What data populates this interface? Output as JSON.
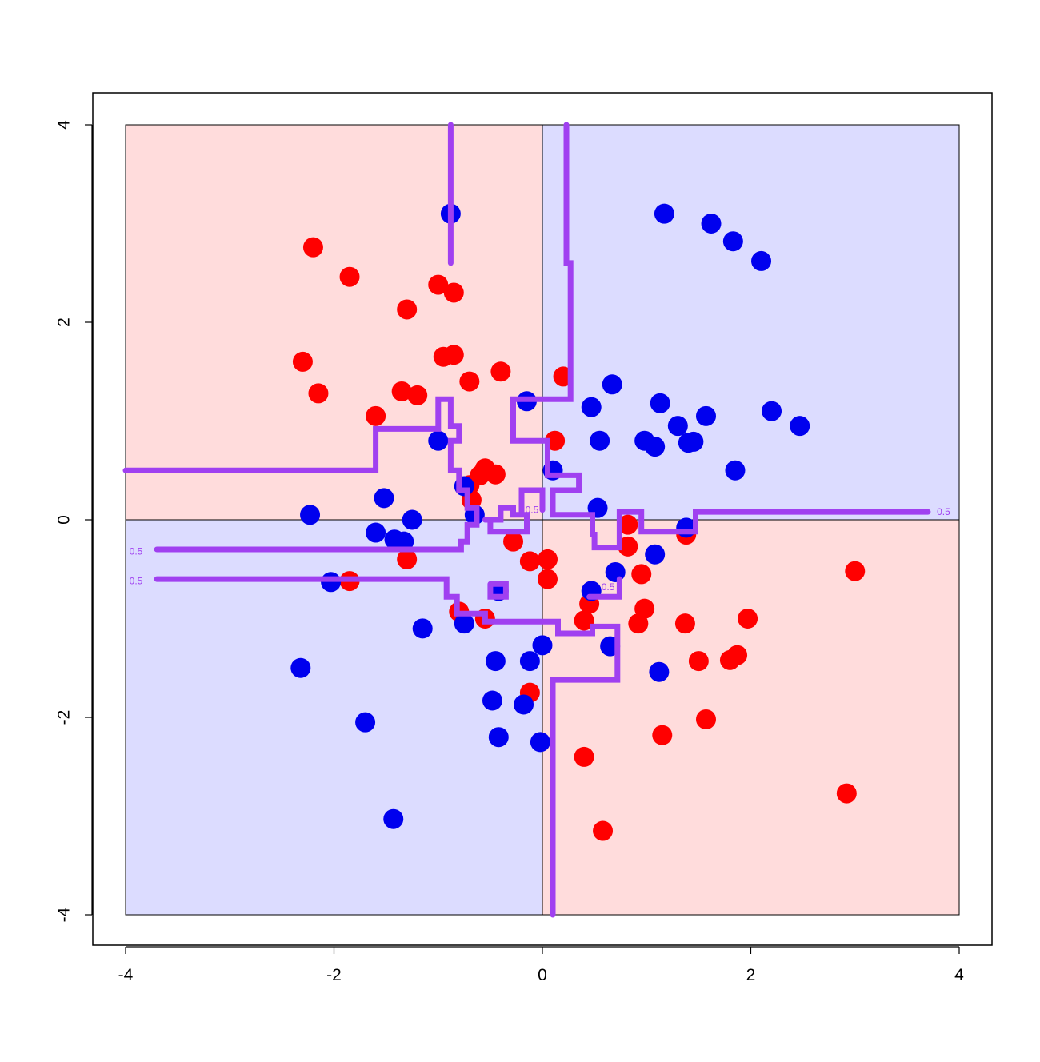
{
  "chart_data": {
    "type": "scatter",
    "xlim": [
      -4,
      4
    ],
    "ylim": [
      -4,
      4
    ],
    "x_ticks": [
      "-4",
      "-2",
      "0",
      "2",
      "4"
    ],
    "y_ticks": [
      "-4",
      "-2",
      "0",
      "2",
      "4"
    ],
    "grid": false,
    "legend": "none",
    "colors": {
      "class_red": "#ff0000",
      "class_blue": "#0000ee",
      "region_red": "#ffdcdc",
      "region_blue": "#dcdcff",
      "boundary": "#a040f0"
    },
    "regions": [
      {
        "quadrant": "top-left",
        "class": "red"
      },
      {
        "quadrant": "top-right",
        "class": "blue"
      },
      {
        "quadrant": "bottom-left",
        "class": "blue"
      },
      {
        "quadrant": "bottom-right",
        "class": "red"
      }
    ],
    "series": [
      {
        "class": "red",
        "points": [
          [
            -2.2,
            2.76
          ],
          [
            -1.85,
            2.46
          ],
          [
            -1.3,
            2.13
          ],
          [
            -1.0,
            2.38
          ],
          [
            -0.85,
            2.3
          ],
          [
            -2.3,
            1.6
          ],
          [
            -2.15,
            1.28
          ],
          [
            -1.35,
            1.3
          ],
          [
            -1.2,
            1.26
          ],
          [
            -0.95,
            1.65
          ],
          [
            -0.85,
            1.67
          ],
          [
            -0.7,
            1.4
          ],
          [
            -0.4,
            1.5
          ],
          [
            -1.6,
            1.05
          ],
          [
            0.2,
            1.45
          ],
          [
            0.12,
            0.8
          ],
          [
            -0.55,
            0.52
          ],
          [
            -0.6,
            0.45
          ],
          [
            -0.45,
            0.46
          ],
          [
            -0.7,
            0.35
          ],
          [
            -0.68,
            0.2
          ],
          [
            -0.28,
            -0.22
          ],
          [
            -0.12,
            -0.42
          ],
          [
            0.05,
            -0.4
          ],
          [
            0.05,
            -0.6
          ],
          [
            -1.3,
            -0.4
          ],
          [
            -1.85,
            -0.62
          ],
          [
            -0.8,
            -0.93
          ],
          [
            -0.55,
            -1.0
          ],
          [
            0.45,
            -0.85
          ],
          [
            0.4,
            -1.02
          ],
          [
            0.82,
            -0.05
          ],
          [
            0.82,
            -0.27
          ],
          [
            0.95,
            -0.55
          ],
          [
            0.98,
            -0.9
          ],
          [
            0.92,
            -1.05
          ],
          [
            1.38,
            -0.15
          ],
          [
            1.37,
            -1.05
          ],
          [
            1.5,
            -1.43
          ],
          [
            1.8,
            -1.42
          ],
          [
            1.87,
            -1.37
          ],
          [
            1.97,
            -1.0
          ],
          [
            3.0,
            -0.52
          ],
          [
            -0.12,
            -1.75
          ],
          [
            1.15,
            -2.18
          ],
          [
            1.57,
            -2.02
          ],
          [
            0.4,
            -2.4
          ],
          [
            0.58,
            -3.15
          ],
          [
            2.92,
            -2.77
          ]
        ]
      },
      {
        "class": "blue",
        "points": [
          [
            -0.88,
            3.1
          ],
          [
            1.17,
            3.1
          ],
          [
            1.62,
            3.0
          ],
          [
            1.83,
            2.82
          ],
          [
            2.1,
            2.62
          ],
          [
            0.67,
            1.37
          ],
          [
            0.47,
            1.14
          ],
          [
            1.13,
            1.18
          ],
          [
            1.3,
            0.95
          ],
          [
            1.57,
            1.05
          ],
          [
            2.2,
            1.1
          ],
          [
            2.47,
            0.95
          ],
          [
            -0.15,
            1.2
          ],
          [
            0.55,
            0.8
          ],
          [
            0.98,
            0.8
          ],
          [
            1.08,
            0.74
          ],
          [
            1.4,
            0.78
          ],
          [
            1.45,
            0.79
          ],
          [
            1.85,
            0.5
          ],
          [
            -1.0,
            0.8
          ],
          [
            0.1,
            0.5
          ],
          [
            0.53,
            0.12
          ],
          [
            -0.75,
            0.34
          ],
          [
            -1.52,
            0.22
          ],
          [
            -2.23,
            0.05
          ],
          [
            -1.25,
            0.0
          ],
          [
            -0.65,
            0.05
          ],
          [
            -1.6,
            -0.13
          ],
          [
            -1.42,
            -0.2
          ],
          [
            -1.33,
            -0.22
          ],
          [
            1.38,
            -0.08
          ],
          [
            1.08,
            -0.35
          ],
          [
            0.7,
            -0.53
          ],
          [
            0.47,
            -0.72
          ],
          [
            -0.42,
            -0.72
          ],
          [
            -2.03,
            -0.63
          ],
          [
            -0.75,
            -1.05
          ],
          [
            -1.15,
            -1.1
          ],
          [
            0.65,
            -1.28
          ],
          [
            -0.45,
            -1.43
          ],
          [
            -0.12,
            -1.43
          ],
          [
            0.0,
            -1.27
          ],
          [
            1.12,
            -1.54
          ],
          [
            -2.32,
            -1.5
          ],
          [
            -0.48,
            -1.83
          ],
          [
            -0.18,
            -1.87
          ],
          [
            -1.7,
            -2.05
          ],
          [
            -0.42,
            -2.2
          ],
          [
            -0.02,
            -2.25
          ],
          [
            -1.43,
            -3.03
          ]
        ]
      }
    ],
    "boundary_label": "0.5",
    "boundaries": [
      [
        [
          -4.0,
          0.5
        ],
        [
          -1.6,
          0.5
        ],
        [
          -1.6,
          0.92
        ],
        [
          -1.0,
          0.92
        ],
        [
          -1.0,
          1.22
        ],
        [
          -0.88,
          1.22
        ],
        [
          -0.88,
          0.95
        ],
        [
          -0.8,
          0.95
        ],
        [
          -0.8,
          0.8
        ],
        [
          -0.88,
          0.8
        ],
        [
          -0.88,
          0.5
        ],
        [
          -0.8,
          0.5
        ],
        [
          -0.8,
          0.3
        ],
        [
          -0.72,
          0.3
        ],
        [
          -0.72,
          0.12
        ],
        [
          -0.63,
          0.12
        ],
        [
          -0.63,
          -0.05
        ],
        [
          -0.72,
          -0.05
        ],
        [
          -0.72,
          -0.22
        ],
        [
          -0.78,
          -0.22
        ],
        [
          -0.78,
          -0.3
        ],
        [
          -3.7,
          -0.3
        ]
      ],
      [
        [
          -3.7,
          -0.6
        ],
        [
          -0.92,
          -0.6
        ],
        [
          -0.92,
          -0.78
        ],
        [
          -0.82,
          -0.78
        ],
        [
          -0.82,
          -0.95
        ],
        [
          -0.55,
          -0.95
        ],
        [
          -0.55,
          -1.03
        ],
        [
          0.15,
          -1.03
        ],
        [
          0.15,
          -1.15
        ],
        [
          0.48,
          -1.15
        ],
        [
          0.48,
          -1.08
        ],
        [
          0.72,
          -1.08
        ],
        [
          0.72,
          -1.62
        ],
        [
          0.1,
          -1.62
        ],
        [
          0.1,
          -4.0
        ]
      ],
      [
        [
          -0.88,
          4.0
        ],
        [
          -0.88,
          2.6
        ]
      ],
      [
        [
          0.23,
          4.0
        ],
        [
          0.23,
          2.6
        ],
        [
          0.27,
          2.6
        ],
        [
          0.27,
          1.22
        ],
        [
          -0.28,
          1.22
        ],
        [
          -0.28,
          0.8
        ],
        [
          0.05,
          0.8
        ],
        [
          0.05,
          0.45
        ],
        [
          0.35,
          0.45
        ],
        [
          0.35,
          0.3
        ],
        [
          0.1,
          0.3
        ],
        [
          0.1,
          0.05
        ],
        [
          0.48,
          0.05
        ],
        [
          0.48,
          -0.15
        ],
        [
          0.5,
          -0.15
        ],
        [
          0.5,
          -0.28
        ],
        [
          0.74,
          -0.28
        ],
        [
          0.74,
          0.08
        ],
        [
          0.95,
          0.08
        ],
        [
          0.95,
          -0.12
        ],
        [
          1.47,
          -0.12
        ],
        [
          1.47,
          0.08
        ],
        [
          3.7,
          0.08
        ]
      ],
      [
        [
          -0.55,
          0.0
        ],
        [
          -0.4,
          0.0
        ],
        [
          -0.4,
          0.12
        ],
        [
          -0.28,
          0.12
        ],
        [
          -0.28,
          0.05
        ],
        [
          -0.15,
          0.05
        ],
        [
          -0.15,
          -0.12
        ],
        [
          -0.5,
          -0.12
        ],
        [
          -0.5,
          0.0
        ]
      ],
      [
        [
          -0.2,
          0.08
        ],
        [
          -0.2,
          0.3
        ],
        [
          0.0,
          0.3
        ],
        [
          0.0,
          0.1
        ]
      ],
      [
        [
          -0.5,
          -0.65
        ],
        [
          -0.35,
          -0.65
        ],
        [
          -0.35,
          -0.78
        ],
        [
          -0.5,
          -0.78
        ],
        [
          -0.5,
          -0.65
        ]
      ],
      [
        [
          0.45,
          -0.78
        ],
        [
          0.74,
          -0.78
        ],
        [
          0.74,
          -0.6
        ]
      ]
    ],
    "boundary_labels": [
      {
        "at": [
          -0.1,
          0.1
        ],
        "text": "0.5"
      },
      {
        "at": [
          3.85,
          0.08
        ],
        "text": "0.5"
      },
      {
        "at": [
          -3.9,
          -0.32
        ],
        "text": "0.5"
      },
      {
        "at": [
          -3.9,
          -0.62
        ],
        "text": "0.5"
      },
      {
        "at": [
          0.63,
          -0.68
        ],
        "text": "0.5"
      }
    ]
  }
}
